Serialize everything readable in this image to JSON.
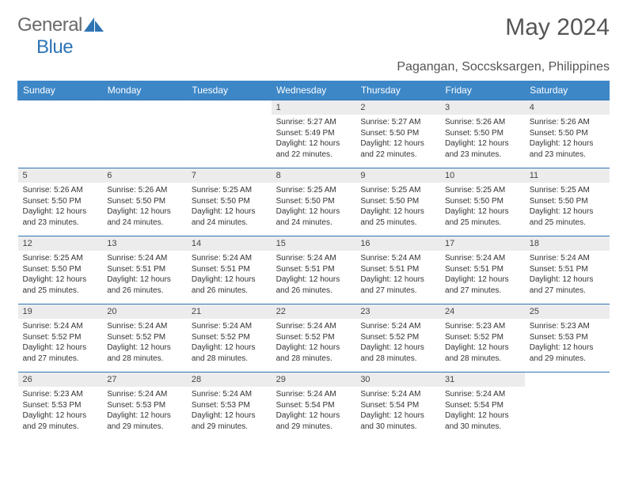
{
  "brand": {
    "general": "General",
    "blue": "Blue"
  },
  "title": "May 2024",
  "location": "Pagangan, Soccsksargen, Philippines",
  "colors": {
    "header_bg": "#3d87c7",
    "header_text": "#ffffff",
    "daynum_bg": "#ececec",
    "border": "#2e74b5",
    "logo_blue": "#2e74b5",
    "text": "#333333"
  },
  "fonts": {
    "title_size": 30,
    "location_size": 16,
    "th_size": 12,
    "cell_size": 10
  },
  "dayHeaders": [
    "Sunday",
    "Monday",
    "Tuesday",
    "Wednesday",
    "Thursday",
    "Friday",
    "Saturday"
  ],
  "weeks": [
    [
      {
        "day": "",
        "sunrise": "",
        "sunset": "",
        "daylight": ""
      },
      {
        "day": "",
        "sunrise": "",
        "sunset": "",
        "daylight": ""
      },
      {
        "day": "",
        "sunrise": "",
        "sunset": "",
        "daylight": ""
      },
      {
        "day": "1",
        "sunrise": "Sunrise: 5:27 AM",
        "sunset": "Sunset: 5:49 PM",
        "daylight": "Daylight: 12 hours and 22 minutes."
      },
      {
        "day": "2",
        "sunrise": "Sunrise: 5:27 AM",
        "sunset": "Sunset: 5:50 PM",
        "daylight": "Daylight: 12 hours and 22 minutes."
      },
      {
        "day": "3",
        "sunrise": "Sunrise: 5:26 AM",
        "sunset": "Sunset: 5:50 PM",
        "daylight": "Daylight: 12 hours and 23 minutes."
      },
      {
        "day": "4",
        "sunrise": "Sunrise: 5:26 AM",
        "sunset": "Sunset: 5:50 PM",
        "daylight": "Daylight: 12 hours and 23 minutes."
      }
    ],
    [
      {
        "day": "5",
        "sunrise": "Sunrise: 5:26 AM",
        "sunset": "Sunset: 5:50 PM",
        "daylight": "Daylight: 12 hours and 23 minutes."
      },
      {
        "day": "6",
        "sunrise": "Sunrise: 5:26 AM",
        "sunset": "Sunset: 5:50 PM",
        "daylight": "Daylight: 12 hours and 24 minutes."
      },
      {
        "day": "7",
        "sunrise": "Sunrise: 5:25 AM",
        "sunset": "Sunset: 5:50 PM",
        "daylight": "Daylight: 12 hours and 24 minutes."
      },
      {
        "day": "8",
        "sunrise": "Sunrise: 5:25 AM",
        "sunset": "Sunset: 5:50 PM",
        "daylight": "Daylight: 12 hours and 24 minutes."
      },
      {
        "day": "9",
        "sunrise": "Sunrise: 5:25 AM",
        "sunset": "Sunset: 5:50 PM",
        "daylight": "Daylight: 12 hours and 25 minutes."
      },
      {
        "day": "10",
        "sunrise": "Sunrise: 5:25 AM",
        "sunset": "Sunset: 5:50 PM",
        "daylight": "Daylight: 12 hours and 25 minutes."
      },
      {
        "day": "11",
        "sunrise": "Sunrise: 5:25 AM",
        "sunset": "Sunset: 5:50 PM",
        "daylight": "Daylight: 12 hours and 25 minutes."
      }
    ],
    [
      {
        "day": "12",
        "sunrise": "Sunrise: 5:25 AM",
        "sunset": "Sunset: 5:50 PM",
        "daylight": "Daylight: 12 hours and 25 minutes."
      },
      {
        "day": "13",
        "sunrise": "Sunrise: 5:24 AM",
        "sunset": "Sunset: 5:51 PM",
        "daylight": "Daylight: 12 hours and 26 minutes."
      },
      {
        "day": "14",
        "sunrise": "Sunrise: 5:24 AM",
        "sunset": "Sunset: 5:51 PM",
        "daylight": "Daylight: 12 hours and 26 minutes."
      },
      {
        "day": "15",
        "sunrise": "Sunrise: 5:24 AM",
        "sunset": "Sunset: 5:51 PM",
        "daylight": "Daylight: 12 hours and 26 minutes."
      },
      {
        "day": "16",
        "sunrise": "Sunrise: 5:24 AM",
        "sunset": "Sunset: 5:51 PM",
        "daylight": "Daylight: 12 hours and 27 minutes."
      },
      {
        "day": "17",
        "sunrise": "Sunrise: 5:24 AM",
        "sunset": "Sunset: 5:51 PM",
        "daylight": "Daylight: 12 hours and 27 minutes."
      },
      {
        "day": "18",
        "sunrise": "Sunrise: 5:24 AM",
        "sunset": "Sunset: 5:51 PM",
        "daylight": "Daylight: 12 hours and 27 minutes."
      }
    ],
    [
      {
        "day": "19",
        "sunrise": "Sunrise: 5:24 AM",
        "sunset": "Sunset: 5:52 PM",
        "daylight": "Daylight: 12 hours and 27 minutes."
      },
      {
        "day": "20",
        "sunrise": "Sunrise: 5:24 AM",
        "sunset": "Sunset: 5:52 PM",
        "daylight": "Daylight: 12 hours and 28 minutes."
      },
      {
        "day": "21",
        "sunrise": "Sunrise: 5:24 AM",
        "sunset": "Sunset: 5:52 PM",
        "daylight": "Daylight: 12 hours and 28 minutes."
      },
      {
        "day": "22",
        "sunrise": "Sunrise: 5:24 AM",
        "sunset": "Sunset: 5:52 PM",
        "daylight": "Daylight: 12 hours and 28 minutes."
      },
      {
        "day": "23",
        "sunrise": "Sunrise: 5:24 AM",
        "sunset": "Sunset: 5:52 PM",
        "daylight": "Daylight: 12 hours and 28 minutes."
      },
      {
        "day": "24",
        "sunrise": "Sunrise: 5:23 AM",
        "sunset": "Sunset: 5:52 PM",
        "daylight": "Daylight: 12 hours and 28 minutes."
      },
      {
        "day": "25",
        "sunrise": "Sunrise: 5:23 AM",
        "sunset": "Sunset: 5:53 PM",
        "daylight": "Daylight: 12 hours and 29 minutes."
      }
    ],
    [
      {
        "day": "26",
        "sunrise": "Sunrise: 5:23 AM",
        "sunset": "Sunset: 5:53 PM",
        "daylight": "Daylight: 12 hours and 29 minutes."
      },
      {
        "day": "27",
        "sunrise": "Sunrise: 5:24 AM",
        "sunset": "Sunset: 5:53 PM",
        "daylight": "Daylight: 12 hours and 29 minutes."
      },
      {
        "day": "28",
        "sunrise": "Sunrise: 5:24 AM",
        "sunset": "Sunset: 5:53 PM",
        "daylight": "Daylight: 12 hours and 29 minutes."
      },
      {
        "day": "29",
        "sunrise": "Sunrise: 5:24 AM",
        "sunset": "Sunset: 5:54 PM",
        "daylight": "Daylight: 12 hours and 29 minutes."
      },
      {
        "day": "30",
        "sunrise": "Sunrise: 5:24 AM",
        "sunset": "Sunset: 5:54 PM",
        "daylight": "Daylight: 12 hours and 30 minutes."
      },
      {
        "day": "31",
        "sunrise": "Sunrise: 5:24 AM",
        "sunset": "Sunset: 5:54 PM",
        "daylight": "Daylight: 12 hours and 30 minutes."
      },
      {
        "day": "",
        "sunrise": "",
        "sunset": "",
        "daylight": ""
      }
    ]
  ]
}
